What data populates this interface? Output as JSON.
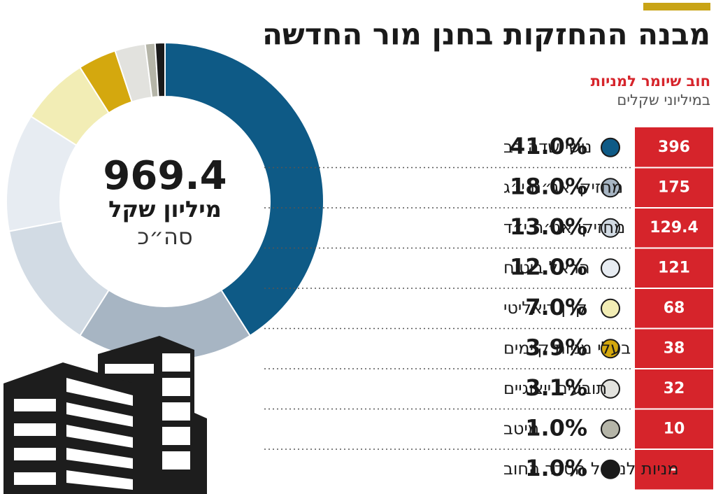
{
  "chart_data": {
    "type": "pie",
    "donut": true,
    "title": "מבנה ההחזקות בחנן מור החדשה",
    "subtitle": "חוב שיומר למניות",
    "unit_note": "במיליוני שקלים",
    "total": 969.4,
    "total_unit": "מיליון שקל",
    "total_label": "סה״כ",
    "categories": [
      "נושי שדה דב",
      "מחזיקי אג״ח י״ג",
      "מחזיקי אג״ח י״ד",
      "הראל ביטוח",
      "קרן ריאליטי",
      "בעלי מניות קיימים",
      "תובעים ייצוגיים",
      "מיטב",
      "מניות לניהול הסדר החוב"
    ],
    "values": [
      41.0,
      18.0,
      13.0,
      12.0,
      7.0,
      3.9,
      3.1,
      1.0,
      1.0
    ],
    "value_labels": [
      "41.0%",
      "18.0%",
      "13.0%",
      "12.0%",
      "7.0%",
      "3.9%",
      "3.1%",
      "1.0%",
      "1.0%"
    ],
    "colors": [
      "#0e5a86",
      "#a7b5c3",
      "#d2dbe4",
      "#e7ecf2",
      "#f2edb5",
      "#d4a80e",
      "#e2e2de",
      "#b5b5a8",
      "#1a1a1a"
    ],
    "debt": [
      396,
      175,
      129.4,
      121,
      68,
      38,
      32,
      10,
      "–"
    ]
  }
}
